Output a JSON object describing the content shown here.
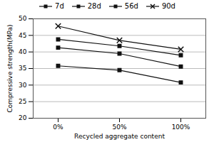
{
  "chart_data": {
    "type": "line",
    "categories": [
      "0%",
      "50%",
      "100%"
    ],
    "series": [
      {
        "name": "7d",
        "color": "#111111",
        "marker": "square",
        "line_style": "solid",
        "values": [
          35.8,
          34.5,
          30.8
        ]
      },
      {
        "name": "28d",
        "color": "#111111",
        "marker": "square",
        "line_style": "solid",
        "values": [
          41.3,
          39.5,
          35.6
        ]
      },
      {
        "name": "56d",
        "color": "#111111",
        "marker": "square",
        "line_style": "solid",
        "values": [
          43.8,
          41.8,
          39.0
        ]
      },
      {
        "name": "90d",
        "color": "#111111",
        "marker": "x",
        "line_style": "solid",
        "values": [
          47.8,
          43.5,
          40.8
        ]
      }
    ],
    "xlabel": "Recycled aggregate content",
    "ylabel": "Compressive strength(MPa)",
    "ylim": [
      20,
      50
    ],
    "yticks": [
      20,
      25,
      30,
      35,
      40,
      45,
      50
    ],
    "grid": true,
    "legend": "top"
  }
}
